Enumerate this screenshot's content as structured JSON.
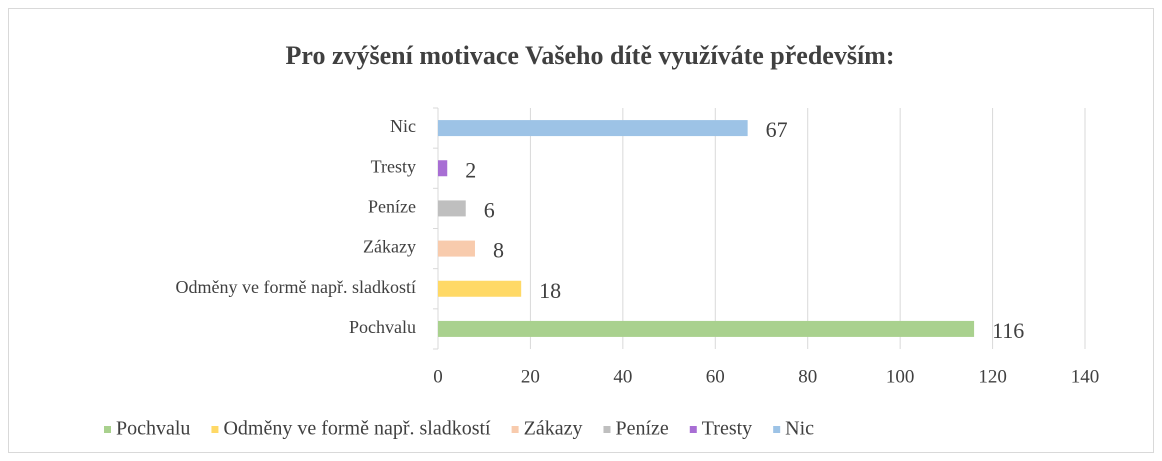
{
  "chart_data": {
    "type": "barh",
    "title": "Pro zvýšení motivace Vašeho dítě využíváte především:",
    "categories": [
      "Pochvalu",
      "Odměny ve formě např. sladkostí",
      "Zákazy",
      "Peníze",
      "Tresty",
      "Nic"
    ],
    "values": [
      116,
      18,
      8,
      6,
      2,
      67
    ],
    "colors": [
      "#a9d18e",
      "#ffd966",
      "#f8cbad",
      "#bfbfbf",
      "#a86ed4",
      "#9dc3e6"
    ],
    "xlim": [
      0,
      140
    ],
    "xticks": [
      0,
      20,
      40,
      60,
      80,
      100,
      120,
      140
    ],
    "grid": true,
    "legend": "bottom"
  }
}
